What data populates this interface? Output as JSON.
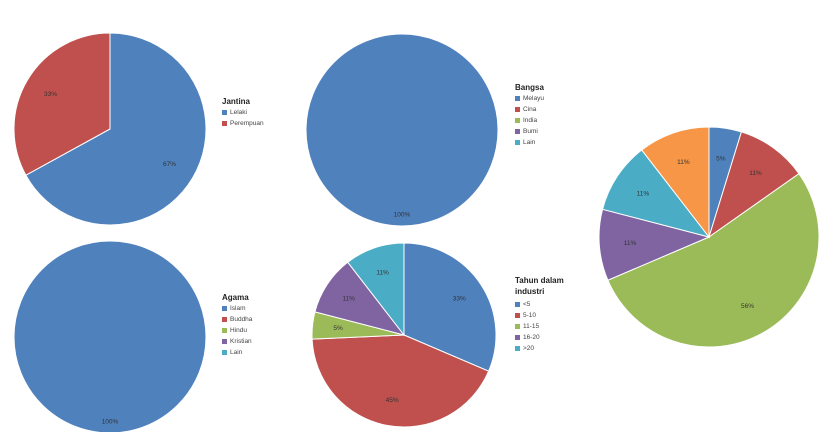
{
  "chart_data": [
    {
      "type": "pie",
      "title": "",
      "legend_title": "Jantina",
      "legend_position": "right",
      "categories": [
        "Lelaki",
        "Perempuan"
      ],
      "values": [
        67,
        33
      ],
      "labels": [
        "67%",
        "33%"
      ],
      "colors": [
        "#4f81bd",
        "#c0504d"
      ]
    },
    {
      "type": "pie",
      "title": "",
      "legend_title": "Bangsa",
      "legend_position": "right",
      "categories": [
        "Melayu",
        "Cina",
        "India",
        "Bumi",
        "Lain"
      ],
      "values": [
        100,
        0,
        0,
        0,
        0
      ],
      "labels": [
        "100%"
      ],
      "colors": [
        "#4f81bd",
        "#c0504d",
        "#9bbb59",
        "#8064a2",
        "#4bacc6"
      ]
    },
    {
      "type": "pie",
      "title": "",
      "legend_title": "Agama",
      "legend_position": "right",
      "categories": [
        "Islam",
        "Buddha",
        "Hindu",
        "Kristian",
        "Lain"
      ],
      "values": [
        100,
        0,
        0,
        0,
        0
      ],
      "labels": [
        "100%"
      ],
      "colors": [
        "#4f81bd",
        "#c0504d",
        "#9bbb59",
        "#8064a2",
        "#4bacc6"
      ]
    },
    {
      "type": "pie",
      "title": "",
      "legend_title": "Tahun dalam industri",
      "legend_position": "right",
      "categories": [
        "<5",
        "5-10",
        "11-15",
        "16-20",
        ">20"
      ],
      "values": [
        33,
        45,
        5,
        11,
        11
      ],
      "labels": [
        "33%",
        "45%",
        "5%",
        "11%",
        "11%"
      ],
      "colors": [
        "#4f81bd",
        "#c0504d",
        "#9bbb59",
        "#8064a2",
        "#4bacc6"
      ]
    },
    {
      "type": "pie",
      "title": "",
      "categories": [
        "",
        "",
        "",
        "",
        "",
        ""
      ],
      "values": [
        5,
        11,
        56,
        11,
        11,
        11
      ],
      "labels": [
        "5%",
        "11%",
        "56%",
        "11%",
        "11%",
        "11%"
      ],
      "colors": [
        "#4f81bd",
        "#c0504d",
        "#9bbb59",
        "#8064a2",
        "#4bacc6",
        "#f79646"
      ]
    }
  ]
}
